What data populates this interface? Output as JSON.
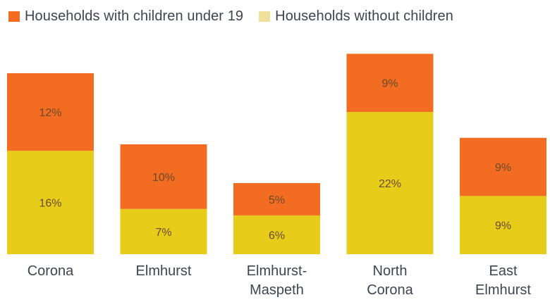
{
  "chart_data": {
    "type": "bar",
    "stacked": true,
    "title": "",
    "xlabel": "",
    "ylabel": "",
    "unit": "%",
    "categories": [
      [
        "Corona"
      ],
      [
        "Elmhurst"
      ],
      [
        "Elmhurst-",
        "Maspeth"
      ],
      [
        "North",
        "Corona"
      ],
      [
        "East",
        "Elmhurst"
      ]
    ],
    "series": [
      {
        "name": "Households without children",
        "color": "#e8cc1a",
        "values": [
          16,
          7,
          6,
          22,
          9
        ]
      },
      {
        "name": "Households with children under 19",
        "color": "#f26d21",
        "values": [
          12,
          10,
          5,
          9,
          9
        ]
      }
    ],
    "legend": [
      {
        "label": "Households with children under 19",
        "color": "#f26d21"
      },
      {
        "label": "Households without children",
        "color": "#f1e09a"
      }
    ],
    "legend_position": "top-left",
    "ylim": [
      0,
      31
    ],
    "grid": false
  }
}
